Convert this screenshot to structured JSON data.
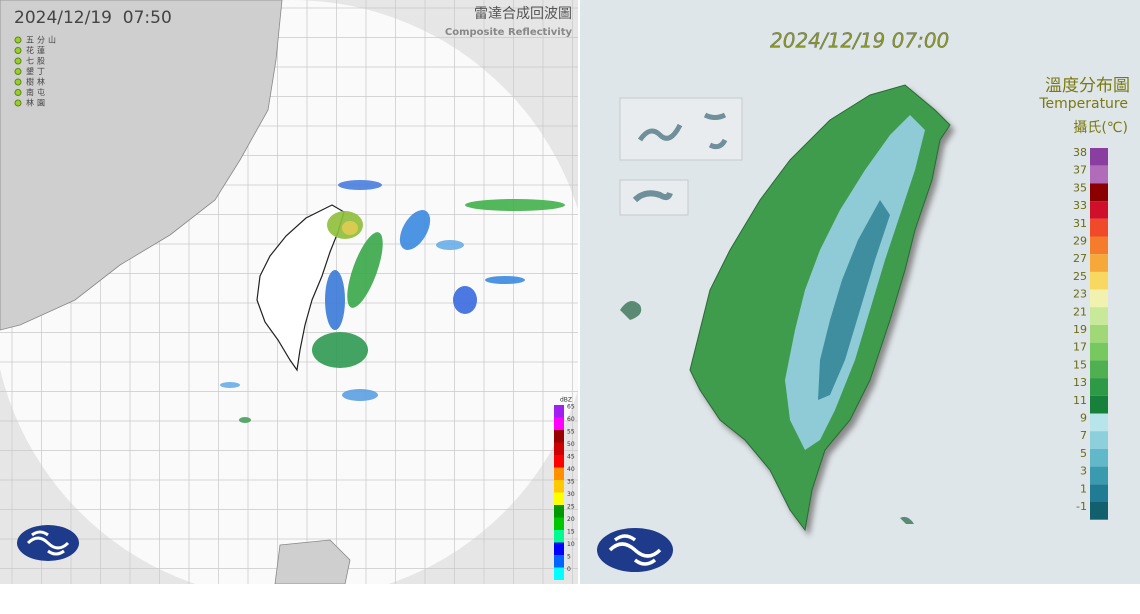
{
  "radar": {
    "timestamp": "2024/12/19  07:50",
    "title": "雷達合成回波圖",
    "subtitle": "Composite Reflectivity",
    "stations": [
      "五分山",
      "花蓮",
      "七股",
      "墾丁",
      "樹林",
      "南屯",
      "林園"
    ],
    "scale": {
      "unit": "dBZ",
      "ticks": [
        65,
        60,
        55,
        50,
        45,
        40,
        35,
        30,
        25,
        20,
        15,
        10,
        5,
        0
      ],
      "colors": [
        "#a020f0",
        "#ff00ff",
        "#990000",
        "#cc0000",
        "#ff0000",
        "#ff9000",
        "#ffc800",
        "#ffff00",
        "#009900",
        "#00c800",
        "#00fb90",
        "#0000ff",
        "#0064ff",
        "#00ffff"
      ]
    }
  },
  "temperature": {
    "timestamp": "2024/12/19 07:00",
    "title": "溫度分布圖",
    "subtitle": "Temperature",
    "unit": "攝氏(℃)",
    "scale": {
      "ticks": [
        38,
        37,
        35,
        33,
        31,
        29,
        27,
        25,
        23,
        21,
        19,
        17,
        15,
        13,
        11,
        9,
        7,
        5,
        3,
        1,
        -1
      ],
      "colors": [
        "#8a3fa0",
        "#b06cb8",
        "#8b0000",
        "#d0102a",
        "#f04a2a",
        "#f57c2a",
        "#f7a83a",
        "#f8d860",
        "#f2f2b0",
        "#c8e89a",
        "#a0d878",
        "#78c860",
        "#50b050",
        "#2e9a48",
        "#17813c",
        "#b8e4ec",
        "#8dd0dc",
        "#60b8c8",
        "#3a9aae",
        "#207c92",
        "#12606e"
      ]
    }
  }
}
